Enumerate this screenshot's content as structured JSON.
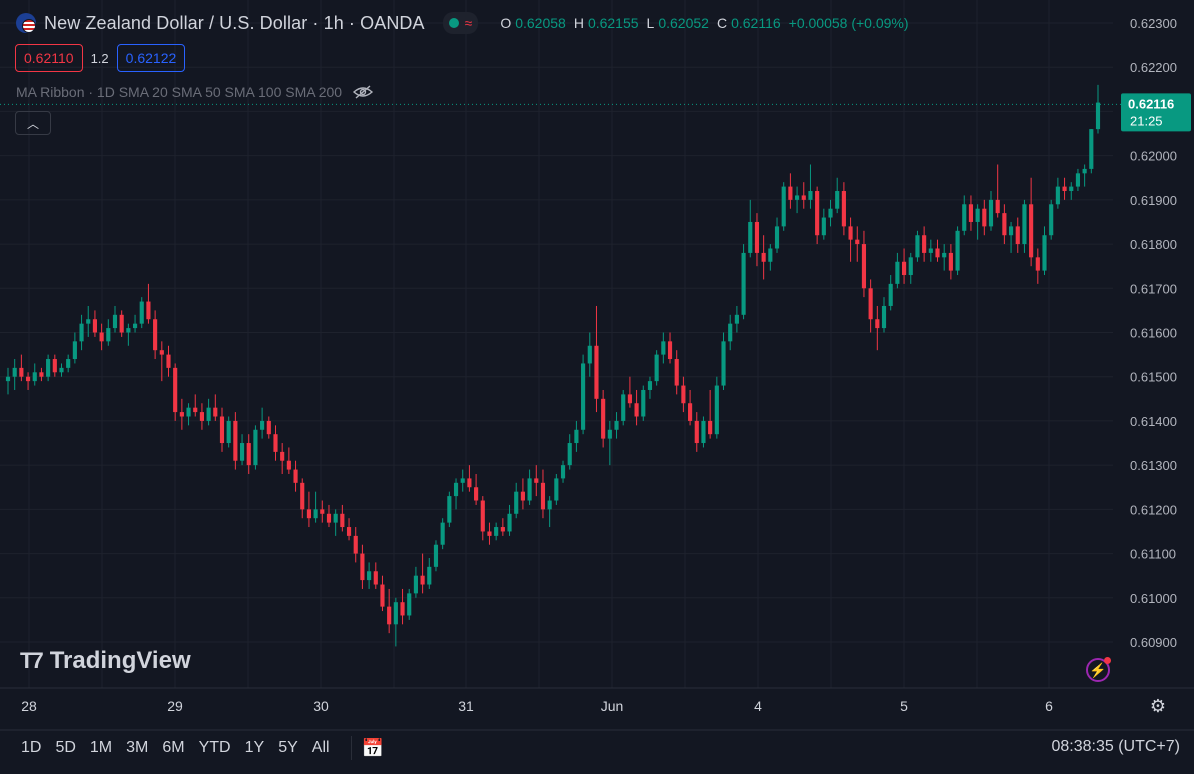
{
  "header": {
    "title": "New Zealand Dollar / U.S. Dollar · 1h · OANDA",
    "ohlc": [
      {
        "k": "O",
        "v": "0.62058"
      },
      {
        "k": "H",
        "v": "0.62155"
      },
      {
        "k": "L",
        "v": "0.62052"
      },
      {
        "k": "C",
        "v": "0.62116"
      },
      {
        "k": "",
        "v": "+0.00058 (+0.09%)"
      }
    ]
  },
  "trade": {
    "sell": "0.62110",
    "spread": "1.2",
    "buy": "0.62122"
  },
  "indicator": {
    "label": "MA Ribbon · 1D SMA 20 SMA 50 SMA 100 SMA 200"
  },
  "price_tag": {
    "price": "0.62116",
    "countdown": "21:25"
  },
  "logo": {
    "text": "TradingView"
  },
  "ranges": [
    "1D",
    "5D",
    "1M",
    "3M",
    "6M",
    "YTD",
    "1Y",
    "5Y",
    "All"
  ],
  "clock": "08:38:35 (UTC+7)",
  "colors": {
    "up": "#089981",
    "down": "#f23645",
    "bg": "#131722",
    "grid": "#1e222d"
  },
  "chart_data": {
    "type": "candlestick",
    "yticks": [
      "0.62300",
      "0.62200",
      "0.62100",
      "0.62000",
      "0.61900",
      "0.61800",
      "0.61700",
      "0.61600",
      "0.61500",
      "0.61400",
      "0.61300",
      "0.61200",
      "0.61100",
      "0.61000",
      "0.60900"
    ],
    "ylim": [
      0.6085,
      0.6233
    ],
    "xlabels": [
      "28",
      "29",
      "30",
      "31",
      "Jun",
      "4",
      "5",
      "6"
    ],
    "last_price": 0.62116,
    "candles": [
      [
        0.6149,
        0.6152,
        0.6146,
        0.615
      ],
      [
        0.615,
        0.6154,
        0.6147,
        0.6152
      ],
      [
        0.6152,
        0.6155,
        0.6149,
        0.615
      ],
      [
        0.615,
        0.6151,
        0.6147,
        0.6149
      ],
      [
        0.6149,
        0.6153,
        0.6148,
        0.6151
      ],
      [
        0.6151,
        0.6152,
        0.6149,
        0.615
      ],
      [
        0.615,
        0.6155,
        0.6149,
        0.6154
      ],
      [
        0.6154,
        0.6155,
        0.615,
        0.6151
      ],
      [
        0.6151,
        0.6153,
        0.615,
        0.6152
      ],
      [
        0.6152,
        0.6155,
        0.6151,
        0.6154
      ],
      [
        0.6154,
        0.616,
        0.6153,
        0.6158
      ],
      [
        0.6158,
        0.6164,
        0.6156,
        0.6162
      ],
      [
        0.6162,
        0.6166,
        0.6159,
        0.6163
      ],
      [
        0.6163,
        0.6165,
        0.6159,
        0.616
      ],
      [
        0.616,
        0.6162,
        0.6156,
        0.6158
      ],
      [
        0.6158,
        0.6163,
        0.6157,
        0.6161
      ],
      [
        0.6161,
        0.6166,
        0.616,
        0.6164
      ],
      [
        0.6164,
        0.6165,
        0.6159,
        0.616
      ],
      [
        0.616,
        0.6162,
        0.6157,
        0.6161
      ],
      [
        0.6161,
        0.6164,
        0.616,
        0.6162
      ],
      [
        0.6162,
        0.6168,
        0.6161,
        0.6167
      ],
      [
        0.6167,
        0.6171,
        0.6162,
        0.6163
      ],
      [
        0.6163,
        0.6165,
        0.6154,
        0.6156
      ],
      [
        0.6156,
        0.6158,
        0.6149,
        0.6155
      ],
      [
        0.6155,
        0.6157,
        0.615,
        0.6152
      ],
      [
        0.6152,
        0.6153,
        0.614,
        0.6142
      ],
      [
        0.6142,
        0.6145,
        0.6138,
        0.6141
      ],
      [
        0.6141,
        0.6144,
        0.6139,
        0.6143
      ],
      [
        0.6143,
        0.6146,
        0.6141,
        0.6142
      ],
      [
        0.6142,
        0.6144,
        0.6138,
        0.614
      ],
      [
        0.614,
        0.6145,
        0.6139,
        0.6143
      ],
      [
        0.6143,
        0.6146,
        0.614,
        0.6141
      ],
      [
        0.6141,
        0.6143,
        0.6133,
        0.6135
      ],
      [
        0.6135,
        0.6141,
        0.6134,
        0.614
      ],
      [
        0.614,
        0.6142,
        0.6129,
        0.6131
      ],
      [
        0.6131,
        0.6137,
        0.613,
        0.6135
      ],
      [
        0.6135,
        0.6137,
        0.6128,
        0.613
      ],
      [
        0.613,
        0.6139,
        0.6129,
        0.6138
      ],
      [
        0.6138,
        0.6143,
        0.6136,
        0.614
      ],
      [
        0.614,
        0.6141,
        0.6136,
        0.6137
      ],
      [
        0.6137,
        0.6139,
        0.6131,
        0.6133
      ],
      [
        0.6133,
        0.6135,
        0.6128,
        0.6131
      ],
      [
        0.6131,
        0.6134,
        0.6128,
        0.6129
      ],
      [
        0.6129,
        0.6131,
        0.6124,
        0.6126
      ],
      [
        0.6126,
        0.6127,
        0.6118,
        0.612
      ],
      [
        0.612,
        0.6124,
        0.6116,
        0.6118
      ],
      [
        0.6118,
        0.6124,
        0.6117,
        0.612
      ],
      [
        0.612,
        0.6122,
        0.6117,
        0.6119
      ],
      [
        0.6119,
        0.6121,
        0.6116,
        0.6117
      ],
      [
        0.6117,
        0.612,
        0.6114,
        0.6119
      ],
      [
        0.6119,
        0.6121,
        0.6115,
        0.6116
      ],
      [
        0.6116,
        0.6118,
        0.6113,
        0.6114
      ],
      [
        0.6114,
        0.6116,
        0.6108,
        0.611
      ],
      [
        0.611,
        0.6112,
        0.6102,
        0.6104
      ],
      [
        0.6104,
        0.6108,
        0.6102,
        0.6106
      ],
      [
        0.6106,
        0.6108,
        0.6102,
        0.6103
      ],
      [
        0.6103,
        0.6105,
        0.6097,
        0.6098
      ],
      [
        0.6098,
        0.6102,
        0.6092,
        0.6094
      ],
      [
        0.6094,
        0.61,
        0.6089,
        0.6099
      ],
      [
        0.6099,
        0.6102,
        0.6094,
        0.6096
      ],
      [
        0.6096,
        0.6102,
        0.6095,
        0.6101
      ],
      [
        0.6101,
        0.6107,
        0.61,
        0.6105
      ],
      [
        0.6105,
        0.611,
        0.6101,
        0.6103
      ],
      [
        0.6103,
        0.6109,
        0.6102,
        0.6107
      ],
      [
        0.6107,
        0.6113,
        0.6106,
        0.6112
      ],
      [
        0.6112,
        0.6118,
        0.6111,
        0.6117
      ],
      [
        0.6117,
        0.6124,
        0.6116,
        0.6123
      ],
      [
        0.6123,
        0.6127,
        0.612,
        0.6126
      ],
      [
        0.6126,
        0.6129,
        0.6124,
        0.6127
      ],
      [
        0.6127,
        0.613,
        0.6124,
        0.6125
      ],
      [
        0.6125,
        0.6128,
        0.6121,
        0.6122
      ],
      [
        0.6122,
        0.6123,
        0.6113,
        0.6115
      ],
      [
        0.6115,
        0.6117,
        0.6112,
        0.6114
      ],
      [
        0.6114,
        0.6117,
        0.6113,
        0.6116
      ],
      [
        0.6116,
        0.6118,
        0.6114,
        0.6115
      ],
      [
        0.6115,
        0.6121,
        0.6114,
        0.6119
      ],
      [
        0.6119,
        0.6126,
        0.6118,
        0.6124
      ],
      [
        0.6124,
        0.6127,
        0.612,
        0.6122
      ],
      [
        0.6122,
        0.6129,
        0.6121,
        0.6127
      ],
      [
        0.6127,
        0.613,
        0.6123,
        0.6126
      ],
      [
        0.6126,
        0.6129,
        0.6118,
        0.612
      ],
      [
        0.612,
        0.6123,
        0.6116,
        0.6122
      ],
      [
        0.6122,
        0.6128,
        0.6121,
        0.6127
      ],
      [
        0.6127,
        0.6131,
        0.6126,
        0.613
      ],
      [
        0.613,
        0.6137,
        0.6129,
        0.6135
      ],
      [
        0.6135,
        0.614,
        0.6133,
        0.6138
      ],
      [
        0.6138,
        0.6155,
        0.6137,
        0.6153
      ],
      [
        0.6153,
        0.616,
        0.615,
        0.6157
      ],
      [
        0.6157,
        0.6166,
        0.6142,
        0.6145
      ],
      [
        0.6145,
        0.6147,
        0.6134,
        0.6136
      ],
      [
        0.6136,
        0.614,
        0.613,
        0.6138
      ],
      [
        0.6138,
        0.6142,
        0.6136,
        0.614
      ],
      [
        0.614,
        0.6147,
        0.6139,
        0.6146
      ],
      [
        0.6146,
        0.615,
        0.6143,
        0.6144
      ],
      [
        0.6144,
        0.6147,
        0.6139,
        0.6141
      ],
      [
        0.6141,
        0.6148,
        0.614,
        0.6147
      ],
      [
        0.6147,
        0.615,
        0.6145,
        0.6149
      ],
      [
        0.6149,
        0.6156,
        0.6148,
        0.6155
      ],
      [
        0.6155,
        0.616,
        0.6153,
        0.6158
      ],
      [
        0.6158,
        0.616,
        0.6153,
        0.6154
      ],
      [
        0.6154,
        0.6156,
        0.6146,
        0.6148
      ],
      [
        0.6148,
        0.615,
        0.6142,
        0.6144
      ],
      [
        0.6144,
        0.6147,
        0.6139,
        0.614
      ],
      [
        0.614,
        0.6142,
        0.6133,
        0.6135
      ],
      [
        0.6135,
        0.6141,
        0.6134,
        0.614
      ],
      [
        0.614,
        0.6147,
        0.6136,
        0.6137
      ],
      [
        0.6137,
        0.615,
        0.6136,
        0.6148
      ],
      [
        0.6148,
        0.616,
        0.6147,
        0.6158
      ],
      [
        0.6158,
        0.6164,
        0.6156,
        0.6162
      ],
      [
        0.6162,
        0.6166,
        0.616,
        0.6164
      ],
      [
        0.6164,
        0.618,
        0.6163,
        0.6178
      ],
      [
        0.6178,
        0.619,
        0.6177,
        0.6185
      ],
      [
        0.6185,
        0.6187,
        0.6175,
        0.6178
      ],
      [
        0.6178,
        0.6182,
        0.6172,
        0.6176
      ],
      [
        0.6176,
        0.618,
        0.6174,
        0.6179
      ],
      [
        0.6179,
        0.6186,
        0.6178,
        0.6184
      ],
      [
        0.6184,
        0.6194,
        0.6183,
        0.6193
      ],
      [
        0.6193,
        0.6196,
        0.6188,
        0.619
      ],
      [
        0.619,
        0.6193,
        0.6187,
        0.6191
      ],
      [
        0.6191,
        0.6194,
        0.6188,
        0.619
      ],
      [
        0.619,
        0.6198,
        0.6188,
        0.6192
      ],
      [
        0.6192,
        0.6193,
        0.618,
        0.6182
      ],
      [
        0.6182,
        0.6188,
        0.6181,
        0.6186
      ],
      [
        0.6186,
        0.619,
        0.6184,
        0.6188
      ],
      [
        0.6188,
        0.6195,
        0.6187,
        0.6192
      ],
      [
        0.6192,
        0.6194,
        0.6182,
        0.6184
      ],
      [
        0.6184,
        0.6186,
        0.6176,
        0.6181
      ],
      [
        0.6181,
        0.6184,
        0.6176,
        0.618
      ],
      [
        0.618,
        0.6183,
        0.6168,
        0.617
      ],
      [
        0.617,
        0.6172,
        0.616,
        0.6163
      ],
      [
        0.6163,
        0.6166,
        0.6156,
        0.6161
      ],
      [
        0.6161,
        0.6168,
        0.616,
        0.6166
      ],
      [
        0.6166,
        0.6173,
        0.6165,
        0.6171
      ],
      [
        0.6171,
        0.6178,
        0.617,
        0.6176
      ],
      [
        0.6176,
        0.6179,
        0.6171,
        0.6173
      ],
      [
        0.6173,
        0.6178,
        0.6171,
        0.6177
      ],
      [
        0.6177,
        0.6183,
        0.6176,
        0.6182
      ],
      [
        0.6182,
        0.6184,
        0.6176,
        0.6178
      ],
      [
        0.6178,
        0.6181,
        0.6176,
        0.6179
      ],
      [
        0.6179,
        0.6181,
        0.6176,
        0.6177
      ],
      [
        0.6177,
        0.618,
        0.6174,
        0.6178
      ],
      [
        0.6178,
        0.618,
        0.6172,
        0.6174
      ],
      [
        0.6174,
        0.6184,
        0.6173,
        0.6183
      ],
      [
        0.6183,
        0.6191,
        0.6182,
        0.6189
      ],
      [
        0.6189,
        0.6191,
        0.6183,
        0.6185
      ],
      [
        0.6185,
        0.6189,
        0.6181,
        0.6188
      ],
      [
        0.6188,
        0.619,
        0.6182,
        0.6184
      ],
      [
        0.6184,
        0.6192,
        0.6183,
        0.619
      ],
      [
        0.619,
        0.6198,
        0.6186,
        0.6187
      ],
      [
        0.6187,
        0.6189,
        0.618,
        0.6182
      ],
      [
        0.6182,
        0.6185,
        0.6178,
        0.6184
      ],
      [
        0.6184,
        0.6186,
        0.6178,
        0.618
      ],
      [
        0.618,
        0.619,
        0.6178,
        0.6189
      ],
      [
        0.6189,
        0.6195,
        0.6175,
        0.6177
      ],
      [
        0.6177,
        0.6179,
        0.6171,
        0.6174
      ],
      [
        0.6174,
        0.6184,
        0.6173,
        0.6182
      ],
      [
        0.6182,
        0.619,
        0.6181,
        0.6189
      ],
      [
        0.6189,
        0.6195,
        0.6188,
        0.6193
      ],
      [
        0.6193,
        0.6195,
        0.619,
        0.6192
      ],
      [
        0.6192,
        0.6194,
        0.619,
        0.6193
      ],
      [
        0.6193,
        0.6197,
        0.6192,
        0.6196
      ],
      [
        0.6196,
        0.6198,
        0.6193,
        0.6197
      ],
      [
        0.6197,
        0.6206,
        0.6196,
        0.6206
      ],
      [
        0.6206,
        0.6216,
        0.6205,
        0.6212
      ]
    ]
  }
}
